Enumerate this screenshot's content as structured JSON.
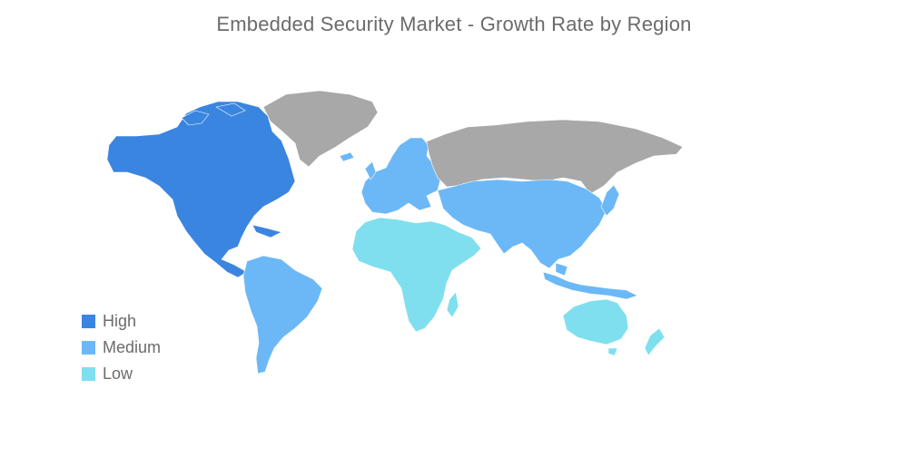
{
  "title": "Embedded Security Market - Growth Rate by Region",
  "colors": {
    "high": "#3a85e0",
    "medium": "#6cb8f7",
    "low": "#7fdfee",
    "no_data": "#a8a8a8"
  },
  "legend": [
    {
      "label": "High",
      "color": "#3a85e0"
    },
    {
      "label": "Medium",
      "color": "#6cb8f7"
    },
    {
      "label": "Low",
      "color": "#7fdfee"
    }
  ],
  "regions": [
    {
      "name": "North America",
      "level": "high"
    },
    {
      "name": "South America",
      "level": "medium"
    },
    {
      "name": "Europe",
      "level": "medium"
    },
    {
      "name": "Asia-Pacific",
      "level": "medium"
    },
    {
      "name": "Middle East and Africa",
      "level": "low"
    },
    {
      "name": "Australia and New Zealand",
      "level": "low"
    },
    {
      "name": "Greenland",
      "level": "no-data"
    },
    {
      "name": "Russia",
      "level": "no-data"
    }
  ]
}
